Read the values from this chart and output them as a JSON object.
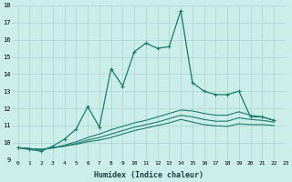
{
  "xlabel": "Humidex (Indice chaleur)",
  "background_color": "#cceee8",
  "grid_color": "#aad4ce",
  "line_color": "#1a7a6e",
  "xlim": [
    -0.5,
    23
  ],
  "ylim": [
    9,
    18
  ],
  "yticks": [
    9,
    10,
    11,
    12,
    13,
    14,
    15,
    16,
    17,
    18
  ],
  "xticks": [
    0,
    1,
    2,
    3,
    4,
    5,
    6,
    7,
    8,
    9,
    10,
    11,
    12,
    13,
    14,
    15,
    16,
    17,
    18,
    19,
    20,
    21,
    22,
    23
  ],
  "series": [
    {
      "x": [
        0,
        1,
        2,
        3,
        4,
        5,
        6,
        7,
        8,
        9,
        10,
        11,
        12,
        13,
        14,
        15,
        16,
        17,
        18,
        19,
        20,
        21,
        22
      ],
      "y": [
        9.7,
        9.6,
        9.5,
        9.8,
        10.2,
        10.8,
        12.1,
        10.9,
        14.3,
        13.3,
        15.3,
        15.8,
        15.5,
        15.6,
        17.7,
        13.5,
        13.0,
        12.8,
        12.8,
        13.0,
        11.5,
        11.5,
        11.3
      ],
      "marker": true
    },
    {
      "x": [
        0,
        1,
        2,
        3,
        4,
        5,
        6,
        7,
        8,
        9,
        10,
        11,
        12,
        13,
        14,
        15,
        16,
        17,
        18,
        19,
        20,
        21,
        22
      ],
      "y": [
        9.7,
        9.65,
        9.6,
        9.7,
        9.85,
        10.05,
        10.3,
        10.5,
        10.75,
        10.95,
        11.15,
        11.3,
        11.5,
        11.7,
        11.9,
        11.85,
        11.7,
        11.6,
        11.6,
        11.8,
        11.6,
        11.5,
        11.3
      ],
      "marker": false
    },
    {
      "x": [
        0,
        1,
        2,
        3,
        4,
        5,
        6,
        7,
        8,
        9,
        10,
        11,
        12,
        13,
        14,
        15,
        16,
        17,
        18,
        19,
        20,
        21,
        22
      ],
      "y": [
        9.7,
        9.65,
        9.6,
        9.7,
        9.8,
        9.95,
        10.15,
        10.3,
        10.5,
        10.7,
        10.9,
        11.05,
        11.2,
        11.4,
        11.6,
        11.5,
        11.35,
        11.25,
        11.25,
        11.45,
        11.35,
        11.3,
        11.2
      ],
      "marker": false
    },
    {
      "x": [
        0,
        1,
        2,
        3,
        4,
        5,
        6,
        7,
        8,
        9,
        10,
        11,
        12,
        13,
        14,
        15,
        16,
        17,
        18,
        19,
        20,
        21,
        22
      ],
      "y": [
        9.7,
        9.65,
        9.6,
        9.7,
        9.8,
        9.9,
        10.05,
        10.15,
        10.3,
        10.5,
        10.7,
        10.85,
        11.0,
        11.15,
        11.35,
        11.2,
        11.05,
        10.98,
        10.95,
        11.1,
        11.05,
        11.05,
        11.0
      ],
      "marker": false
    }
  ]
}
